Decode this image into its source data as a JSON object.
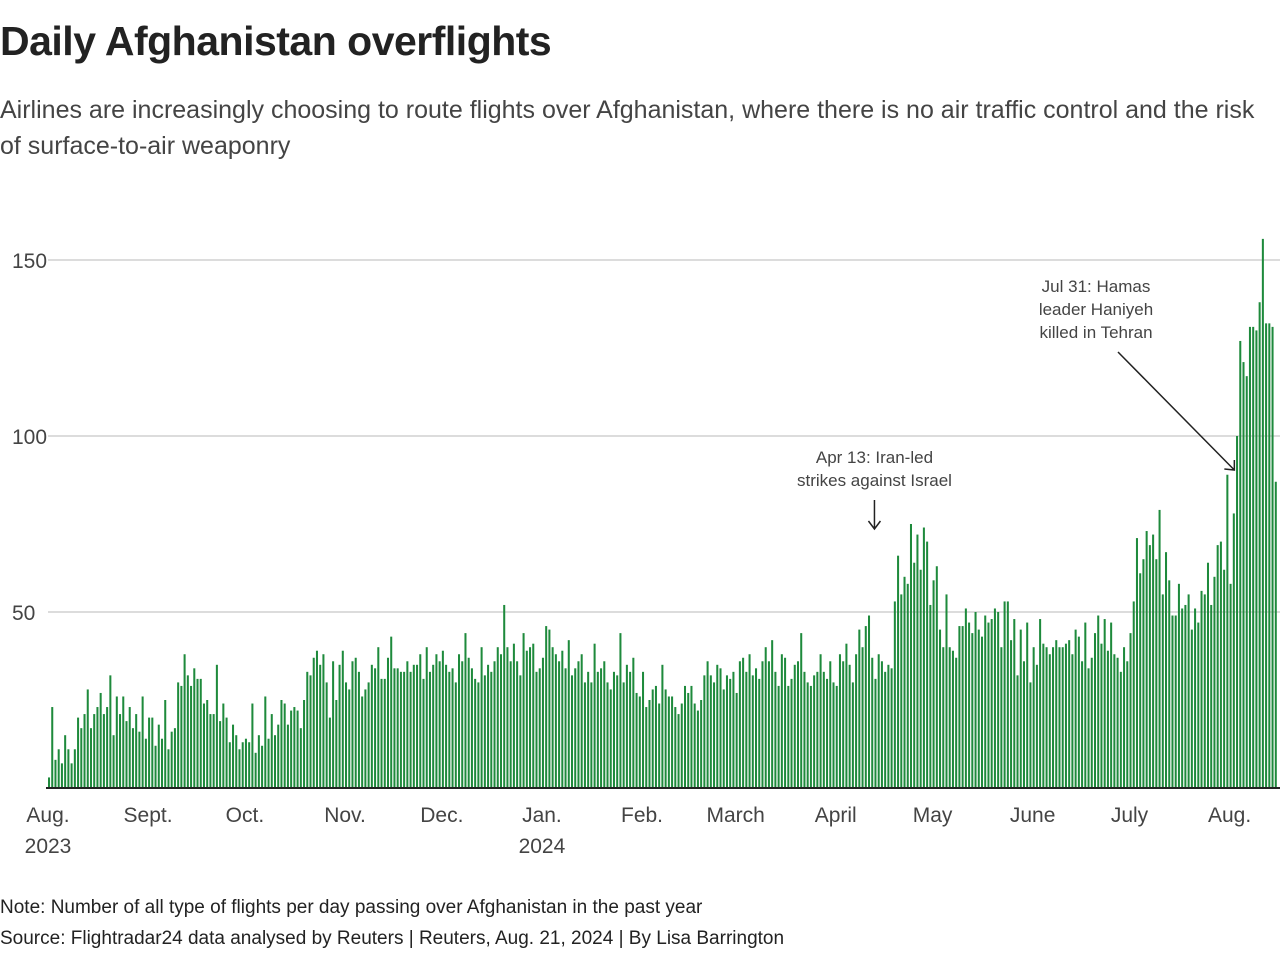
{
  "title": "Daily Afghanistan overflights",
  "subtitle": "Airlines are increasingly choosing to route flights over Afghanistan, where there is no air traffic control and the risk of surface-to-air weaponry",
  "note": "Note: Number of all type of flights per day passing over Afghanistan in the past year",
  "source": "Source: Flightradar24 data analysed by Reuters | Reuters, Aug. 21, 2024 | By Lisa Barrington",
  "chart_data": {
    "type": "bar",
    "title": "Daily Afghanistan overflights",
    "xlabel": "",
    "ylabel": "",
    "ylim": [
      0,
      157
    ],
    "yticks": [
      50,
      100,
      150
    ],
    "ytick_labels": [
      "50",
      "100",
      "150"
    ],
    "grid": true,
    "bar_color": "#1e8a3c",
    "months": [
      {
        "month": "2023-08",
        "label": "Aug.",
        "year": "2023",
        "values": [
          3,
          23,
          8,
          11,
          7,
          15,
          11,
          7,
          11,
          20,
          17,
          21,
          28,
          17,
          21,
          23,
          27,
          21,
          23,
          32,
          15,
          26,
          21,
          26,
          19,
          23,
          17,
          21,
          16,
          26,
          14
        ]
      },
      {
        "month": "2023-09",
        "label": "Sept.",
        "values": [
          20,
          20,
          12,
          18,
          14,
          25,
          11,
          16,
          17,
          30,
          29,
          38,
          32,
          29,
          34,
          31,
          31,
          24,
          25,
          21,
          21,
          35,
          19,
          24,
          20,
          13,
          18,
          15,
          11,
          13
        ]
      },
      {
        "month": "2023-10",
        "label": "Oct.",
        "values": [
          14,
          13,
          24,
          10,
          15,
          12,
          26,
          14,
          21,
          15,
          18,
          25,
          24,
          18,
          22,
          23,
          22,
          17,
          25,
          33,
          32,
          37,
          39,
          35,
          38,
          30,
          20,
          36,
          25,
          35,
          39
        ]
      },
      {
        "month": "2023-11",
        "label": "Nov.",
        "values": [
          30,
          28,
          36,
          37,
          33,
          26,
          28,
          30,
          35,
          34,
          40,
          31,
          31,
          37,
          43,
          34,
          34,
          33,
          33,
          36,
          33,
          35,
          35,
          38,
          31,
          40,
          33,
          35,
          38,
          36
        ]
      },
      {
        "month": "2023-12",
        "label": "Dec.",
        "values": [
          39,
          35,
          33,
          34,
          30,
          38,
          36,
          44,
          37,
          34,
          31,
          30,
          40,
          32,
          35,
          33,
          36,
          40,
          38,
          52,
          40,
          36,
          41,
          36,
          32,
          44,
          39,
          40,
          41,
          33,
          34
        ]
      },
      {
        "month": "2024-01",
        "label": "Jan.",
        "year": "2024",
        "values": [
          37,
          46,
          45,
          40,
          38,
          36,
          39,
          34,
          42,
          32,
          34,
          36,
          38,
          30,
          33,
          30,
          41,
          33,
          34,
          36,
          30,
          28,
          33,
          32,
          44,
          30,
          35,
          33,
          37,
          27,
          26
        ]
      },
      {
        "month": "2024-02",
        "label": "Feb.",
        "values": [
          33,
          23,
          25,
          28,
          29,
          24,
          35,
          28,
          26,
          26,
          23,
          21,
          24,
          29,
          27,
          29,
          24,
          22,
          25,
          32,
          36,
          32,
          30,
          35,
          34,
          28,
          32,
          31,
          33
        ]
      },
      {
        "month": "2024-03",
        "label": "March",
        "values": [
          27,
          36,
          37,
          33,
          38,
          32,
          34,
          31,
          36,
          40,
          36,
          42,
          33,
          29,
          38,
          37,
          29,
          31,
          35,
          36,
          44,
          33,
          30,
          29,
          32,
          33,
          38,
          33,
          31,
          36,
          30
        ]
      },
      {
        "month": "2024-04",
        "label": "April",
        "values": [
          29,
          38,
          36,
          41,
          35,
          30,
          38,
          45,
          40,
          46,
          49,
          37,
          31,
          38,
          36,
          33,
          35,
          34,
          53,
          66,
          55,
          60,
          58,
          75,
          64,
          72,
          62,
          74,
          70,
          52
        ]
      },
      {
        "month": "2024-05",
        "label": "May",
        "values": [
          59,
          63,
          45,
          40,
          55,
          40,
          39,
          37,
          46,
          46,
          51,
          47,
          44,
          50,
          45,
          43,
          49,
          47,
          48,
          51,
          50,
          40,
          53,
          53,
          42,
          48,
          32,
          45,
          36,
          47,
          30
        ]
      },
      {
        "month": "2024-06",
        "label": "June",
        "values": [
          40,
          35,
          48,
          41,
          40,
          38,
          40,
          42,
          40,
          40,
          41,
          42,
          38,
          45,
          43,
          36,
          47,
          34,
          37,
          44,
          49,
          41,
          48,
          39,
          47,
          38,
          37,
          33,
          40,
          36
        ]
      },
      {
        "month": "2024-07",
        "label": "July",
        "values": [
          44,
          53,
          71,
          61,
          65,
          73,
          69,
          72,
          65,
          79,
          55,
          67,
          59,
          49,
          49,
          58,
          51,
          52,
          55,
          45,
          51,
          47,
          56,
          55,
          64,
          52,
          60,
          69,
          70,
          62,
          89
        ]
      },
      {
        "month": "2024-08",
        "label": "Aug.",
        "values": [
          58,
          78,
          100,
          127,
          121,
          117,
          131,
          131,
          130,
          138,
          156,
          132,
          132,
          131,
          87
        ]
      }
    ],
    "annotations": [
      {
        "date": "2024-04-13",
        "lines": [
          "Apr 13: Iran-led",
          "strikes against Israel"
        ]
      },
      {
        "date": "2024-07-31",
        "lines": [
          "Jul 31: Hamas",
          "leader Haniyeh",
          "killed in Tehran"
        ]
      }
    ]
  }
}
